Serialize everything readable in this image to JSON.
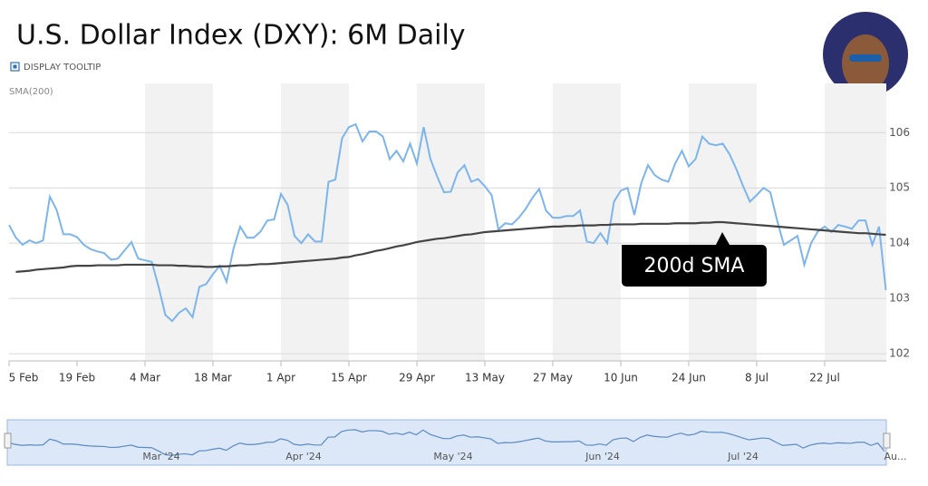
{
  "chart_data": {
    "type": "line",
    "title": "U.S. Dollar Index (DXY): 6M Daily",
    "tooltip_toggle": "DISPLAY TOOLTIP",
    "annotation": "200d SMA",
    "categories": [
      "5 Feb",
      null,
      null,
      null,
      null,
      null,
      null,
      null,
      null,
      null,
      "19 Feb",
      null,
      null,
      null,
      null,
      null,
      null,
      null,
      null,
      null,
      "4 Mar",
      null,
      null,
      null,
      null,
      null,
      null,
      null,
      null,
      null,
      "18 Mar",
      null,
      null,
      null,
      null,
      null,
      null,
      null,
      null,
      null,
      "1 Apr",
      null,
      null,
      null,
      null,
      null,
      null,
      null,
      null,
      null,
      "15 Apr",
      null,
      null,
      null,
      null,
      null,
      null,
      null,
      null,
      null,
      "29 Apr",
      null,
      null,
      null,
      null,
      null,
      null,
      null,
      null,
      null,
      "13 May",
      null,
      null,
      null,
      null,
      null,
      null,
      null,
      null,
      null,
      "27 May",
      null,
      null,
      null,
      null,
      null,
      null,
      null,
      null,
      null,
      "10 Jun",
      null,
      null,
      null,
      null,
      null,
      null,
      null,
      null,
      null,
      "24 Jun",
      null,
      null,
      null,
      null,
      null,
      null,
      null,
      null,
      null,
      "8 Jul",
      null,
      null,
      null,
      null,
      null,
      null,
      null,
      null,
      null,
      "22 Jul",
      null,
      null,
      null,
      null,
      null,
      null,
      null,
      null,
      null
    ],
    "series": [
      {
        "color": "#7cb5ec",
        "values": [
          104.33,
          104.1,
          103.97,
          104.05,
          104.0,
          104.05,
          104.84,
          104.6,
          104.16,
          104.16,
          104.11,
          103.97,
          103.89,
          103.85,
          103.82,
          103.7,
          103.72,
          103.87,
          104.02,
          103.72,
          103.69,
          103.66,
          103.21,
          102.7,
          102.59,
          102.74,
          102.82,
          102.66,
          103.21,
          103.26,
          103.44,
          103.59,
          103.3,
          103.89,
          104.3,
          104.1,
          104.1,
          104.21,
          104.41,
          104.43,
          104.89,
          104.69,
          104.13,
          104.0,
          104.16,
          104.03,
          104.03,
          105.11,
          105.15,
          105.9,
          106.1,
          106.15,
          105.84,
          106.02,
          106.02,
          105.93,
          105.52,
          105.67,
          105.48,
          105.8,
          105.44,
          106.1,
          105.52,
          105.2,
          104.92,
          104.93,
          105.28,
          105.41,
          105.11,
          105.16,
          105.03,
          104.87,
          104.25,
          104.36,
          104.34,
          104.46,
          104.62,
          104.82,
          104.98,
          104.59,
          104.46,
          104.46,
          104.49,
          104.49,
          104.59,
          104.03,
          104.0,
          104.18,
          104.0,
          104.75,
          104.95,
          105.0,
          104.51,
          105.08,
          105.41,
          105.23,
          105.15,
          105.11,
          105.44,
          105.67,
          105.39,
          105.52,
          105.93,
          105.8,
          105.77,
          105.8,
          105.61,
          105.34,
          105.03,
          104.75,
          104.87,
          105.0,
          104.92,
          104.41,
          103.97,
          104.05,
          104.13,
          103.61,
          104.0,
          104.21,
          104.3,
          104.2,
          104.33,
          104.3,
          104.26,
          104.41,
          104.41,
          103.97,
          104.3,
          103.15
        ]
      },
      {
        "name": "SMA(200)",
        "color": "#444444",
        "values": [
          null,
          103.48,
          103.49,
          103.5,
          103.52,
          103.53,
          103.54,
          103.55,
          103.56,
          103.58,
          103.59,
          103.59,
          103.59,
          103.6,
          103.6,
          103.6,
          103.6,
          103.61,
          103.61,
          103.61,
          103.61,
          103.61,
          103.6,
          103.6,
          103.6,
          103.59,
          103.59,
          103.58,
          103.58,
          103.57,
          103.57,
          103.58,
          103.58,
          103.59,
          103.6,
          103.6,
          103.61,
          103.62,
          103.62,
          103.63,
          103.64,
          103.65,
          103.66,
          103.67,
          103.68,
          103.69,
          103.7,
          103.71,
          103.72,
          103.74,
          103.75,
          103.78,
          103.8,
          103.83,
          103.86,
          103.88,
          103.91,
          103.94,
          103.96,
          103.99,
          104.02,
          104.04,
          104.06,
          104.08,
          104.09,
          104.11,
          104.13,
          104.15,
          104.16,
          104.18,
          104.2,
          104.21,
          104.22,
          104.23,
          104.24,
          104.25,
          104.26,
          104.27,
          104.28,
          104.29,
          104.3,
          104.3,
          104.31,
          104.31,
          104.32,
          104.32,
          104.32,
          104.33,
          104.33,
          104.34,
          104.34,
          104.34,
          104.34,
          104.35,
          104.35,
          104.35,
          104.35,
          104.35,
          104.36,
          104.36,
          104.36,
          104.36,
          104.37,
          104.37,
          104.38,
          104.38,
          104.37,
          104.36,
          104.35,
          104.34,
          104.33,
          104.32,
          104.31,
          104.3,
          104.29,
          104.28,
          104.27,
          104.26,
          104.25,
          104.24,
          104.23,
          104.22,
          104.21,
          104.2,
          104.19,
          104.18,
          104.18,
          104.17,
          104.16,
          104.15
        ]
      }
    ],
    "ylim": [
      101.87,
      106.89
    ],
    "yticks": [
      102,
      103,
      104,
      105,
      106
    ],
    "grid": true,
    "navigator": {
      "labels": [
        "Mar '24",
        "Apr '24",
        "May '24",
        "Jun '24",
        "Jul '24",
        "Au..."
      ]
    }
  }
}
